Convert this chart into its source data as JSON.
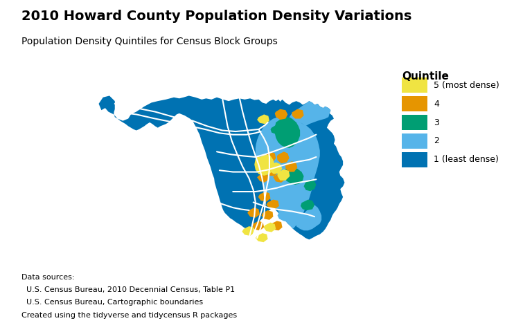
{
  "title": "2010 Howard County Population Density Variations",
  "subtitle": "Population Density Quintiles for Census Block Groups",
  "legend_title": "Quintile",
  "legend_labels": [
    "5 (most dense)",
    "4",
    "3",
    "2",
    "1 (least dense)"
  ],
  "legend_colors": [
    "#F0E442",
    "#E69500",
    "#009E73",
    "#56B4E9",
    "#0072B2"
  ],
  "footnote_lines": [
    "Data sources:",
    "  U.S. Census Bureau, 2010 Decennial Census, Table P1",
    "  U.S. Census Bureau, Cartographic boundaries",
    "Created using the tidyverse and tidycensus R packages"
  ],
  "bg_color": "#FFFFFF",
  "color_q1": "#0072B2",
  "color_q2": "#56B4E9",
  "color_q3": "#009E73",
  "color_q4": "#E69500",
  "color_q5": "#F0E442",
  "road_color": "#FFFFFF",
  "title_fontsize": 14,
  "subtitle_fontsize": 10,
  "footnote_fontsize": 8
}
